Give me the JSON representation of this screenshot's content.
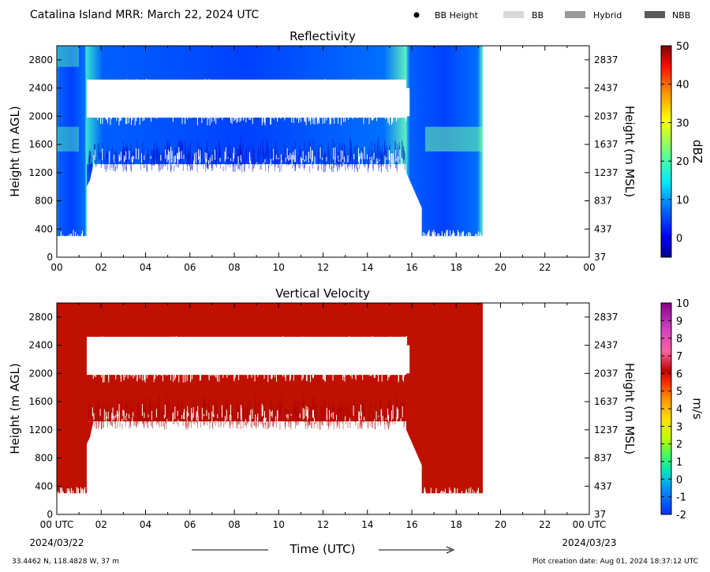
{
  "header": {
    "title": "Catalina Island MRR:  March 22, 2024 UTC",
    "legend": [
      {
        "label": "BB Height",
        "marker": "dot",
        "color": "#000000"
      },
      {
        "label": "BB",
        "marker": "box",
        "color": "#d9d9d9"
      },
      {
        "label": "Hybrid",
        "marker": "box",
        "color": "#9a9a9a"
      },
      {
        "label": "NBB",
        "marker": "box",
        "color": "#5a5a5a"
      }
    ]
  },
  "footer": {
    "xlabel": "Time (UTC)",
    "start_date": "2024/03/22",
    "end_date": "2024/03/23",
    "location": "33.4462 N, 118.4828 W, 37 m",
    "creation": "Plot creation date: Aug 01, 2024 18:37:12 UTC"
  },
  "chart_data": [
    {
      "type": "heatmap",
      "title": "Reflectivity",
      "ylabel": "Height (m AGL)",
      "y2label": "Height (m MSL)",
      "xlim": [
        0,
        24
      ],
      "ylim": [
        0,
        3000
      ],
      "xticks": [
        "00",
        "02",
        "04",
        "06",
        "08",
        "10",
        "12",
        "14",
        "16",
        "18",
        "20",
        "22",
        "00"
      ],
      "yticks": [
        0,
        400,
        800,
        1200,
        1600,
        2000,
        2400,
        2800
      ],
      "y2ticks": [
        37,
        437,
        837,
        1237,
        1637,
        2037,
        2437,
        2837
      ],
      "colorbar": {
        "label": "dBZ",
        "min": -5,
        "max": 50,
        "ticks": [
          0,
          10,
          20,
          30,
          40,
          50
        ]
      },
      "data_end_hour": 19.2,
      "gap_band_m": [
        2000,
        2400
      ],
      "gap_band_hours": [
        1.5,
        15.9
      ]
    },
    {
      "type": "heatmap",
      "title": "Vertical Velocity",
      "ylabel": "Height (m AGL)",
      "y2label": "Height (m MSL)",
      "xlim": [
        0,
        24
      ],
      "ylim": [
        0,
        3000
      ],
      "xticks": [
        "00 UTC",
        "02",
        "04",
        "06",
        "08",
        "10",
        "12",
        "14",
        "16",
        "18",
        "20",
        "22",
        "00 UTC"
      ],
      "yticks": [
        0,
        400,
        800,
        1200,
        1600,
        2000,
        2400,
        2800
      ],
      "y2ticks": [
        37,
        437,
        837,
        1237,
        1637,
        2037,
        2437,
        2837
      ],
      "colorbar": {
        "label": "m/s",
        "min": -2,
        "max": 10,
        "ticks": [
          -2,
          -1,
          0,
          1,
          2,
          3,
          4,
          5,
          6,
          7,
          8,
          9,
          10
        ]
      },
      "data_end_hour": 19.2,
      "gap_band_m": [
        2000,
        2400
      ],
      "gap_band_hours": [
        1.5,
        15.9
      ]
    }
  ]
}
